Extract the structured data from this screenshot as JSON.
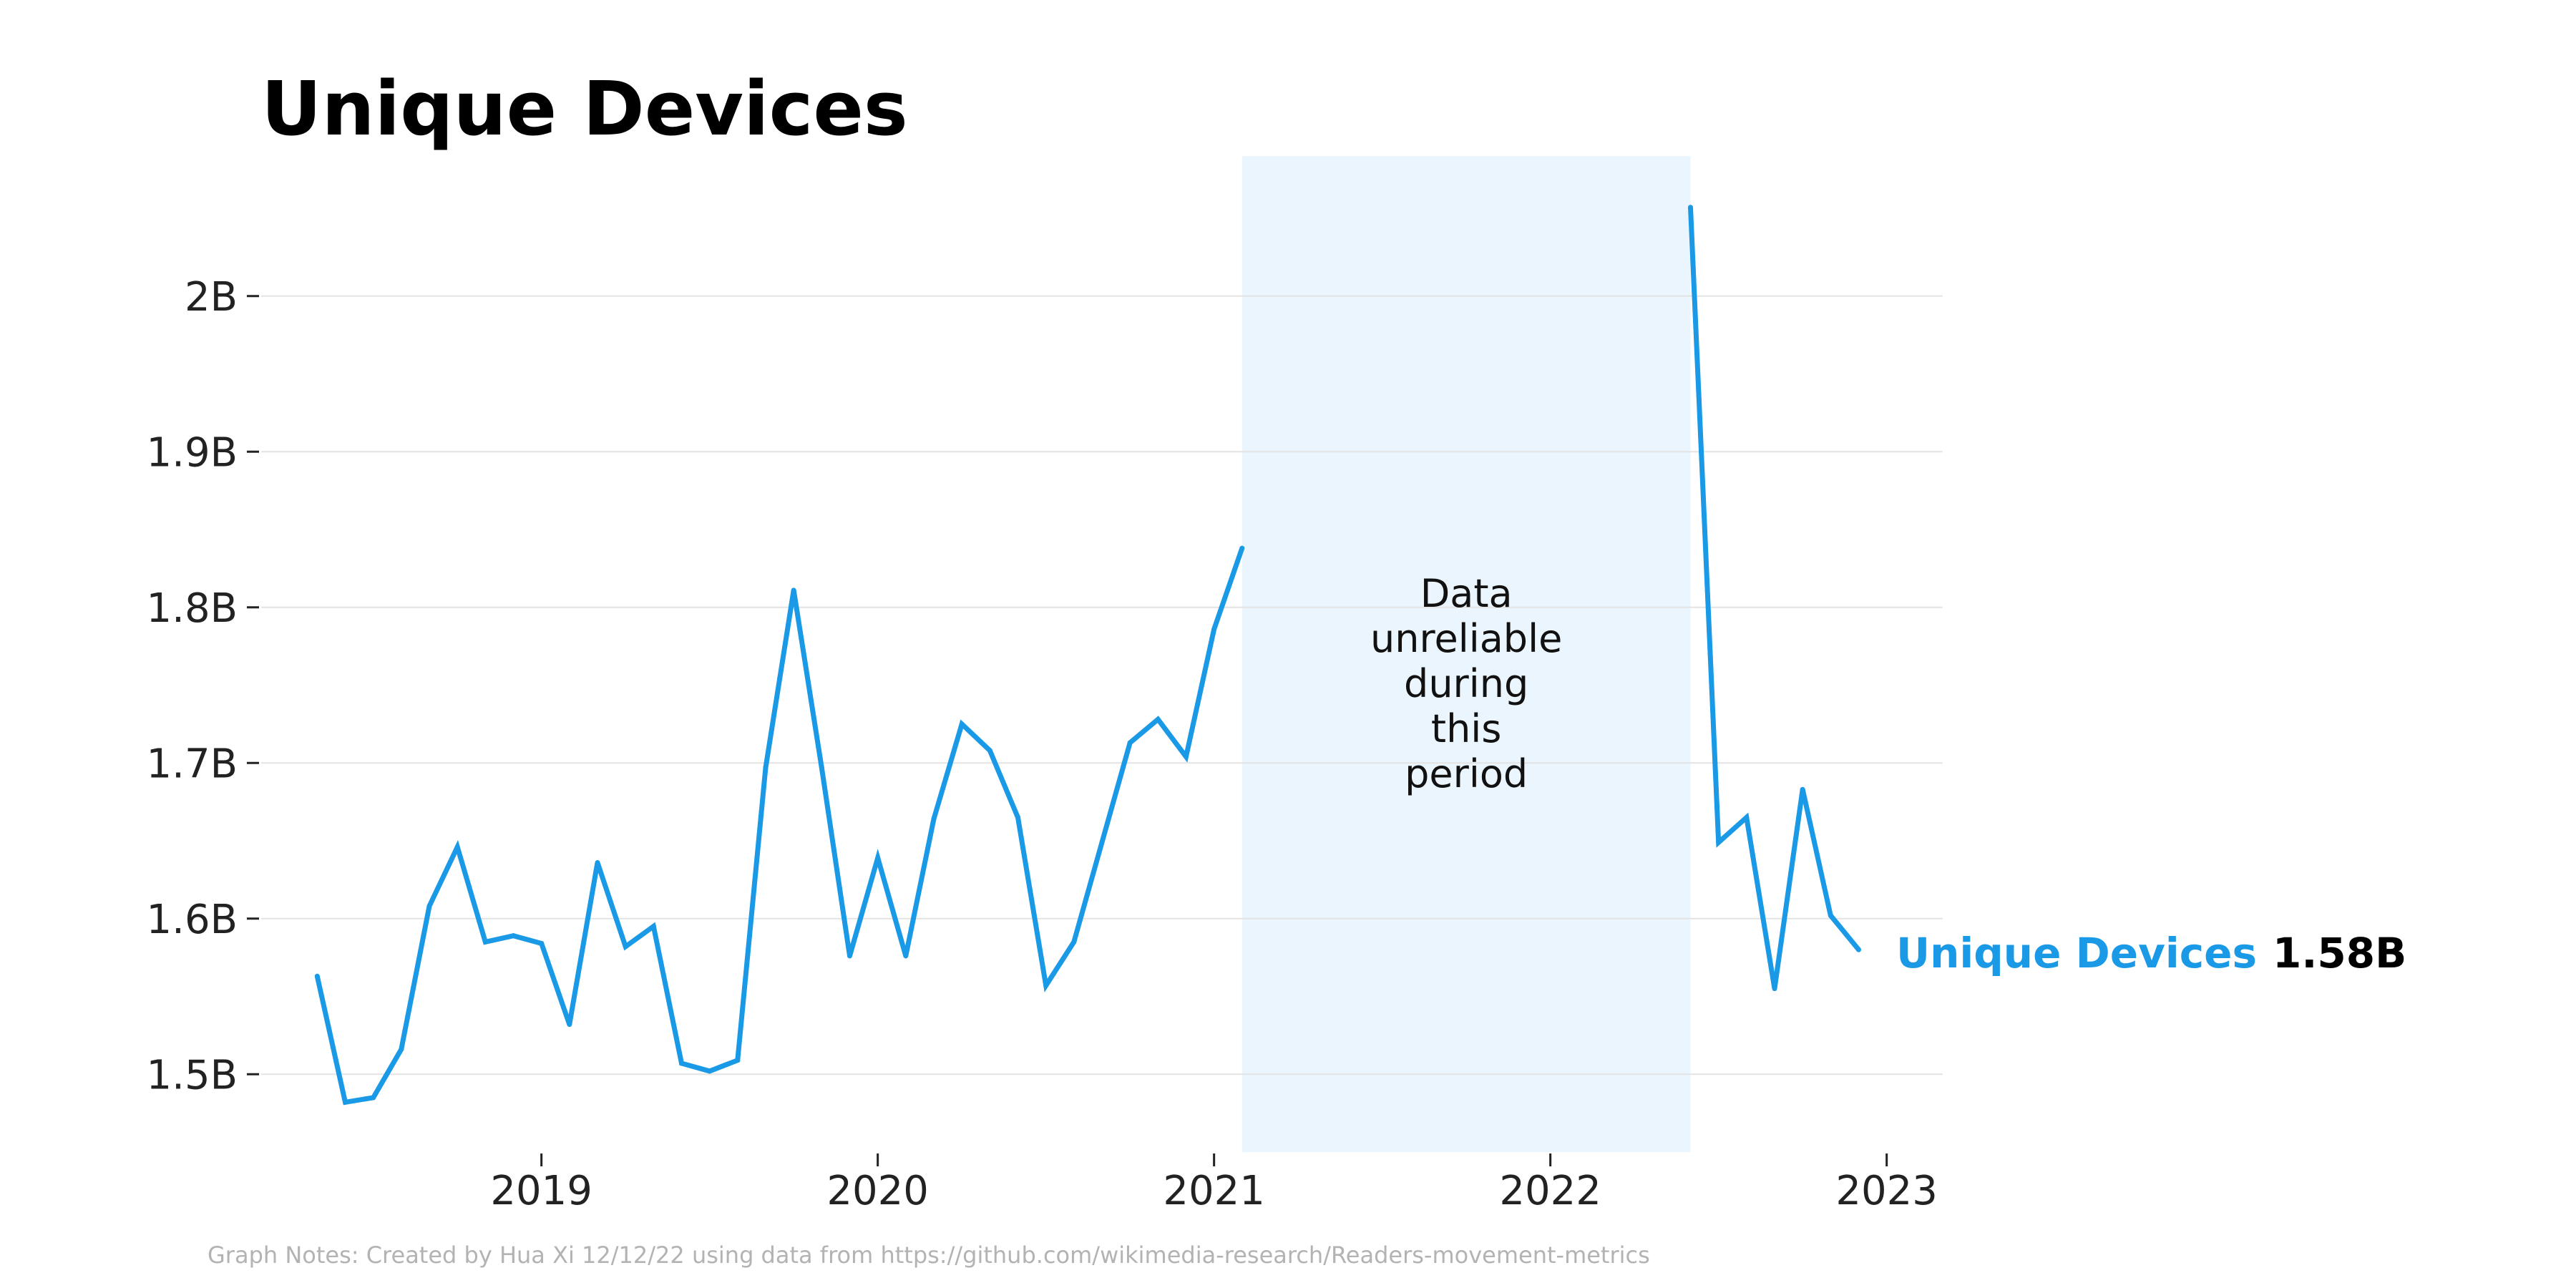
{
  "chart_data": {
    "type": "line",
    "title": "Unique Devices",
    "xlabel": "",
    "ylabel": "",
    "x_ticks": [
      "2019",
      "2020",
      "2021",
      "2022",
      "2023"
    ],
    "y_ticks": [
      "1.5B",
      "1.6B",
      "1.7B",
      "1.8B",
      "1.9B",
      "2B"
    ],
    "ylim": [
      1.45,
      2.09
    ],
    "xlim": [
      "2018-03",
      "2023-03"
    ],
    "grid": "horizontal",
    "series": [
      {
        "name": "Unique Devices",
        "color": "#1a9ae6",
        "segments": [
          [
            {
              "x": "2018-05",
              "y": 1.563
            },
            {
              "x": "2018-06",
              "y": 1.482
            },
            {
              "x": "2018-07",
              "y": 1.485
            },
            {
              "x": "2018-08",
              "y": 1.516
            },
            {
              "x": "2018-09",
              "y": 1.608
            },
            {
              "x": "2018-10",
              "y": 1.646
            },
            {
              "x": "2018-11",
              "y": 1.585
            },
            {
              "x": "2018-12",
              "y": 1.589
            },
            {
              "x": "2019-01",
              "y": 1.584
            },
            {
              "x": "2019-02",
              "y": 1.532
            },
            {
              "x": "2019-03",
              "y": 1.636
            },
            {
              "x": "2019-04",
              "y": 1.582
            },
            {
              "x": "2019-05",
              "y": 1.595
            },
            {
              "x": "2019-06",
              "y": 1.507
            },
            {
              "x": "2019-07",
              "y": 1.502
            },
            {
              "x": "2019-08",
              "y": 1.509
            },
            {
              "x": "2019-09",
              "y": 1.697
            },
            {
              "x": "2019-10",
              "y": 1.811
            },
            {
              "x": "2019-11",
              "y": 1.697
            },
            {
              "x": "2019-12",
              "y": 1.576
            },
            {
              "x": "2020-01",
              "y": 1.639
            },
            {
              "x": "2020-02",
              "y": 1.576
            },
            {
              "x": "2020-03",
              "y": 1.664
            },
            {
              "x": "2020-04",
              "y": 1.725
            },
            {
              "x": "2020-05",
              "y": 1.708
            },
            {
              "x": "2020-06",
              "y": 1.665
            },
            {
              "x": "2020-07",
              "y": 1.557
            },
            {
              "x": "2020-08",
              "y": 1.585
            },
            {
              "x": "2020-09",
              "y": 1.649
            },
            {
              "x": "2020-10",
              "y": 1.713
            },
            {
              "x": "2020-11",
              "y": 1.728
            },
            {
              "x": "2020-12",
              "y": 1.704
            },
            {
              "x": "2021-01",
              "y": 1.786
            },
            {
              "x": "2021-02",
              "y": 1.838
            }
          ],
          [
            {
              "x": "2022-06",
              "y": 2.057
            },
            {
              "x": "2022-07",
              "y": 1.649
            },
            {
              "x": "2022-08",
              "y": 1.665
            },
            {
              "x": "2022-09",
              "y": 1.555
            },
            {
              "x": "2022-10",
              "y": 1.683
            },
            {
              "x": "2022-11",
              "y": 1.602
            },
            {
              "x": "2022-12",
              "y": 1.58
            }
          ]
        ]
      }
    ],
    "shaded_region": {
      "x_start": "2021-02",
      "x_end": "2022-06",
      "color": "#ebf5fd",
      "label_lines": [
        "Data",
        "unreliable",
        "during",
        "this",
        "period"
      ]
    },
    "end_label": {
      "name": "Unique Devices",
      "value": "1.58B"
    },
    "notes": "Graph Notes: Created by Hua Xi 12/12/22 using data from https://github.com/wikimedia-research/Readers-movement-metrics"
  }
}
